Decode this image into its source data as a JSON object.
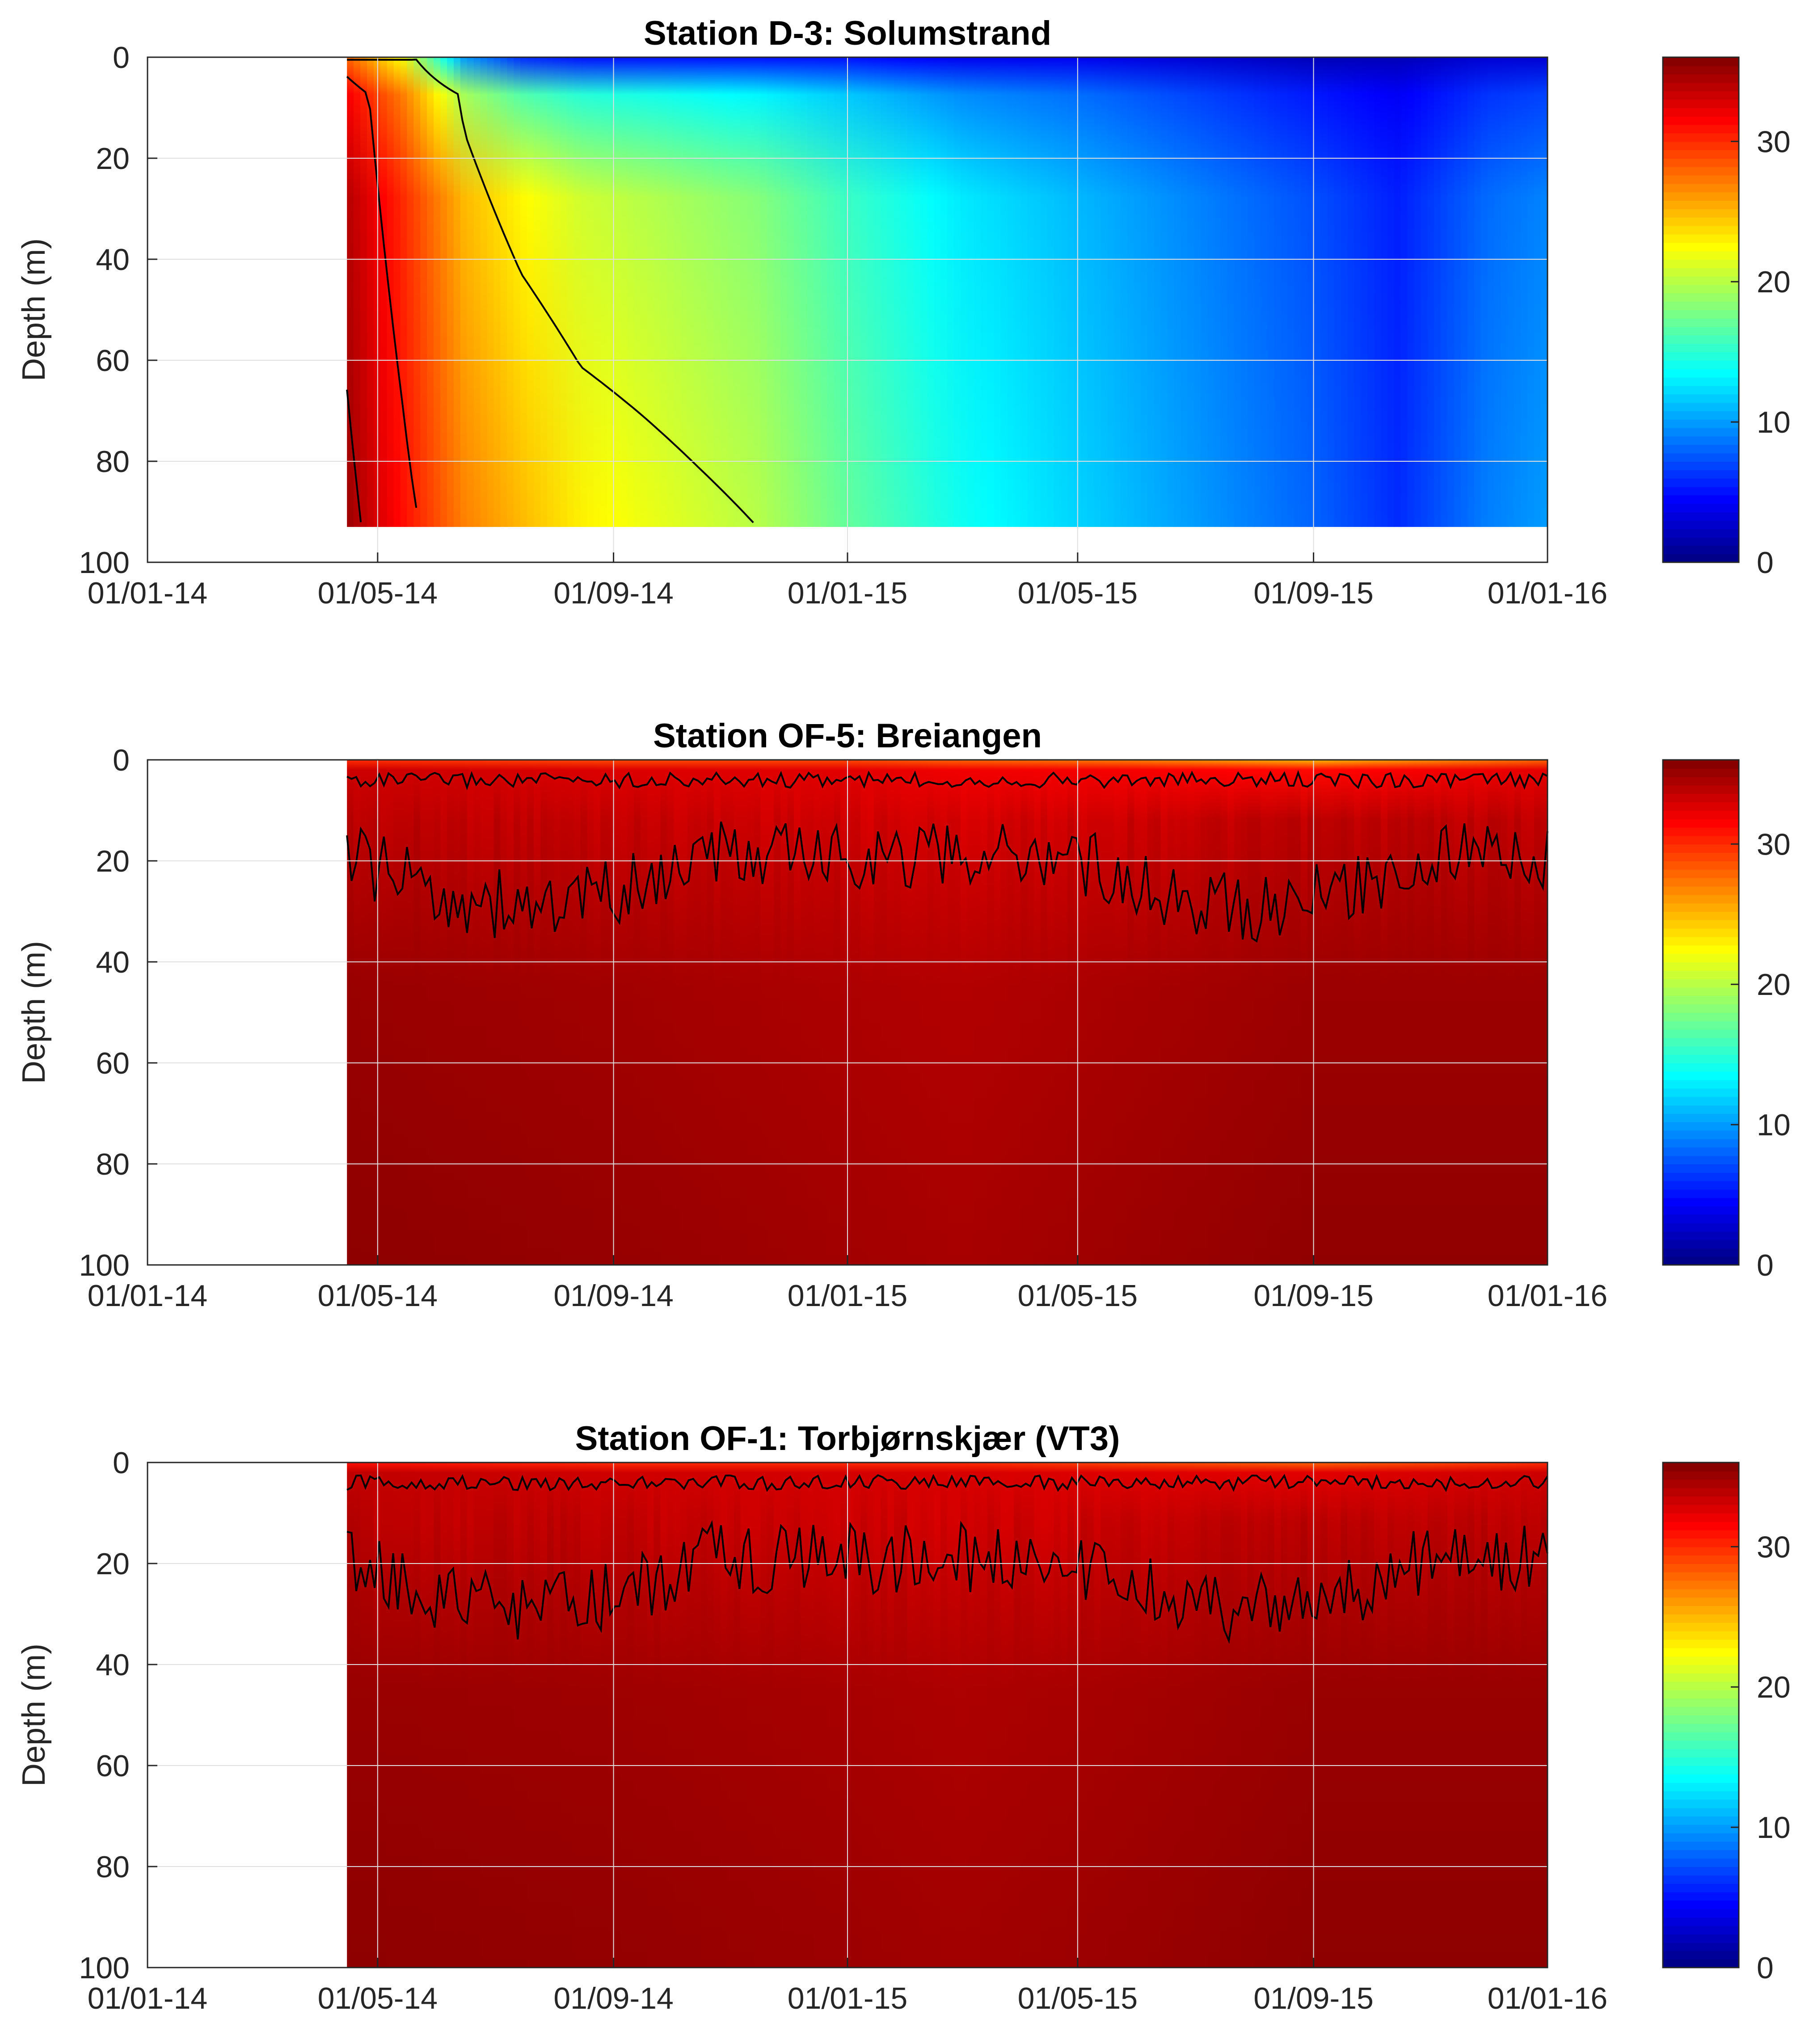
{
  "chart_data": [
    {
      "type": "heatmap",
      "title": "Station D-3: Solumstrand",
      "ylabel": "Depth (m)",
      "xlabel": "",
      "x_ticks": [
        "01/01-14",
        "01/05-14",
        "01/09-14",
        "01/01-15",
        "01/05-15",
        "01/09-15",
        "01/01-16"
      ],
      "y_ticks": [
        "0",
        "20",
        "40",
        "60",
        "80",
        "100"
      ],
      "ylim": [
        0,
        100
      ],
      "y_reversed": true,
      "grid": true,
      "data_start": "2014-04-15",
      "data_end": "2016-01-01",
      "max_depth": 93,
      "colorbar": {
        "ticks": [
          "0",
          "10",
          "20",
          "30"
        ],
        "range": [
          0,
          36
        ],
        "colormap": "jet"
      },
      "contour_levels": [
        20,
        30,
        34
      ],
      "stops": [
        {
          "date": "2014-04-15",
          "surface": 28,
          "deep": 35
        },
        {
          "date": "2014-05-15",
          "surface": 22,
          "deep": 31
        },
        {
          "date": "2014-06-15",
          "surface": 10,
          "deep": 27
        },
        {
          "date": "2014-07-15",
          "surface": 6,
          "deep": 25
        },
        {
          "date": "2014-08-15",
          "surface": 5,
          "deep": 23
        },
        {
          "date": "2014-09-15",
          "surface": 5,
          "deep": 22
        },
        {
          "date": "2014-10-15",
          "surface": 5,
          "deep": 21
        },
        {
          "date": "2014-11-15",
          "surface": 5,
          "deep": 20
        },
        {
          "date": "2015-01-01",
          "surface": 5,
          "deep": 17
        },
        {
          "date": "2015-03-01",
          "surface": 4,
          "deep": 14
        },
        {
          "date": "2015-05-01",
          "surface": 4,
          "deep": 12
        },
        {
          "date": "2015-07-01",
          "surface": 3,
          "deep": 10
        },
        {
          "date": "2015-09-01",
          "surface": 2,
          "deep": 8
        },
        {
          "date": "2015-10-15",
          "surface": 2,
          "deep": 6
        },
        {
          "date": "2015-12-01",
          "surface": 3,
          "deep": 9
        },
        {
          "date": "2016-01-01",
          "surface": 3,
          "deep": 10
        }
      ]
    },
    {
      "type": "heatmap",
      "title": "Station OF-5: Breiangen",
      "ylabel": "Depth (m)",
      "xlabel": "",
      "x_ticks": [
        "01/01-14",
        "01/05-14",
        "01/09-14",
        "01/01-15",
        "01/05-15",
        "01/09-15",
        "01/01-16"
      ],
      "y_ticks": [
        "0",
        "20",
        "40",
        "60",
        "80",
        "100"
      ],
      "ylim": [
        0,
        100
      ],
      "y_reversed": true,
      "grid": true,
      "data_start": "2014-04-15",
      "data_end": "2016-01-01",
      "max_depth": 100,
      "colorbar": {
        "ticks": [
          "0",
          "10",
          "20",
          "30"
        ],
        "range": [
          0,
          36
        ],
        "colormap": "jet"
      },
      "contour_levels": [
        30,
        34
      ],
      "stops": [
        {
          "date": "2014-04-15",
          "surface": 30,
          "deep": 35.5
        },
        {
          "date": "2014-09-01",
          "surface": 29,
          "deep": 35.2
        },
        {
          "date": "2015-01-01",
          "surface": 29,
          "deep": 34.8
        },
        {
          "date": "2015-03-01",
          "surface": 28,
          "deep": 34.6
        },
        {
          "date": "2015-06-01",
          "surface": 27,
          "deep": 35.0
        },
        {
          "date": "2015-09-01",
          "surface": 25,
          "deep": 35.4
        },
        {
          "date": "2016-01-01",
          "surface": 28,
          "deep": 35.4
        }
      ]
    },
    {
      "type": "heatmap",
      "title": "Station OF-1: Torbjørnskjær (VT3)",
      "ylabel": "Depth (m)",
      "xlabel": "",
      "x_ticks": [
        "01/01-14",
        "01/05-14",
        "01/09-14",
        "01/01-15",
        "01/05-15",
        "01/09-15",
        "01/01-16"
      ],
      "y_ticks": [
        "0",
        "20",
        "40",
        "60",
        "80",
        "100"
      ],
      "ylim": [
        0,
        100
      ],
      "y_reversed": true,
      "grid": true,
      "data_start": "2014-04-15",
      "data_end": "2016-01-01",
      "max_depth": 100,
      "colorbar": {
        "ticks": [
          "0",
          "10",
          "20",
          "30"
        ],
        "range": [
          0,
          36
        ],
        "colormap": "jet"
      },
      "contour_levels": [
        30,
        34
      ],
      "stops": [
        {
          "date": "2014-04-15",
          "surface": 31,
          "deep": 35.5
        },
        {
          "date": "2014-09-01",
          "surface": 30,
          "deep": 35.3
        },
        {
          "date": "2015-01-01",
          "surface": 30,
          "deep": 35.0
        },
        {
          "date": "2015-03-01",
          "surface": 30,
          "deep": 34.8
        },
        {
          "date": "2015-06-01",
          "surface": 29,
          "deep": 35.1
        },
        {
          "date": "2015-09-01",
          "surface": 28,
          "deep": 35.5
        },
        {
          "date": "2016-01-01",
          "surface": 30,
          "deep": 35.5
        }
      ]
    }
  ]
}
